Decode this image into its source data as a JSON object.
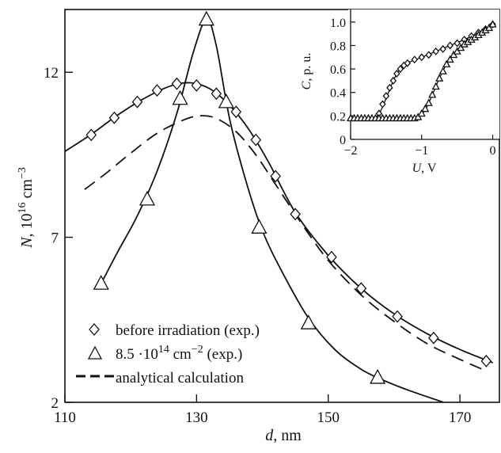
{
  "chart_data": [
    {
      "type": "line",
      "xlabel": {
        "var": "d",
        "unit": ", nm"
      },
      "ylabel": {
        "var": "N",
        "unit_prefix": ", 10",
        "unit_sup": "16",
        "unit_mid": " cm",
        "unit_sup2": "−3"
      },
      "xlim": [
        110,
        176
      ],
      "ylim": [
        2,
        13.9
      ],
      "xticks": [
        110,
        130,
        150,
        170
      ],
      "yticks": [
        2,
        7,
        12
      ],
      "grid": false,
      "legend_position": "bottom-left",
      "series": [
        {
          "name": "before irradiation (exp.)",
          "marker": "diamond",
          "points": [
            [
              114,
              10.1
            ],
            [
              117.5,
              10.62
            ],
            [
              121,
              11.1
            ],
            [
              124,
              11.45
            ],
            [
              127,
              11.65
            ],
            [
              130,
              11.6
            ],
            [
              133,
              11.35
            ],
            [
              136,
              10.8
            ],
            [
              139,
              9.95
            ],
            [
              142,
              8.85
            ],
            [
              145,
              7.7
            ],
            [
              150.5,
              6.4
            ],
            [
              155,
              5.45
            ],
            [
              160.5,
              4.6
            ],
            [
              166,
              3.95
            ],
            [
              174,
              3.25
            ]
          ],
          "curve": [
            [
              110,
              9.6
            ],
            [
              114,
              10.12
            ],
            [
              118,
              10.7
            ],
            [
              122,
              11.2
            ],
            [
              126,
              11.58
            ],
            [
              129,
              11.68
            ],
            [
              132,
              11.5
            ],
            [
              135,
              11.0
            ],
            [
              138,
              10.25
            ],
            [
              141,
              9.25
            ],
            [
              145,
              7.75
            ],
            [
              150,
              6.45
            ],
            [
              155,
              5.45
            ],
            [
              160,
              4.68
            ],
            [
              165,
              4.08
            ],
            [
              170,
              3.6
            ],
            [
              175,
              3.2
            ]
          ]
        },
        {
          "name": "8.5·10¹⁴ cm⁻² (exp.)",
          "legend_parts": {
            "base": "8.5 ·10",
            "sup": "14",
            "mid": " cm",
            "sup2": "−2",
            "tail": " (exp.)"
          },
          "marker": "triangle",
          "points": [
            [
              115.5,
              5.6
            ],
            [
              122.5,
              8.15
            ],
            [
              127.5,
              11.2
            ],
            [
              131.5,
              13.6
            ],
            [
              134.5,
              11.1
            ],
            [
              139.5,
              7.3
            ],
            [
              147,
              4.4
            ],
            [
              157.5,
              2.75
            ]
          ],
          "curve": [
            [
              115.5,
              5.6
            ],
            [
              118,
              6.55
            ],
            [
              121,
              7.65
            ],
            [
              124,
              9.0
            ],
            [
              127,
              10.75
            ],
            [
              129.5,
              12.6
            ],
            [
              131.5,
              13.6
            ],
            [
              133,
              12.8
            ],
            [
              135,
              10.6
            ],
            [
              137.5,
              8.7
            ],
            [
              140,
              7.2
            ],
            [
              143,
              5.95
            ],
            [
              147,
              4.55
            ],
            [
              151,
              3.6
            ],
            [
              155,
              3.0
            ],
            [
              158,
              2.7
            ],
            [
              162,
              2.38
            ],
            [
              167.5,
              2.0
            ]
          ]
        },
        {
          "name": "analytical calculation",
          "style": "dashed",
          "curve": [
            [
              113,
              8.45
            ],
            [
              116,
              8.9
            ],
            [
              120,
              9.55
            ],
            [
              124,
              10.15
            ],
            [
              128,
              10.55
            ],
            [
              130.5,
              10.68
            ],
            [
              133,
              10.6
            ],
            [
              136,
              10.2
            ],
            [
              139,
              9.5
            ],
            [
              142,
              8.6
            ],
            [
              146,
              7.4
            ],
            [
              150,
              6.3
            ],
            [
              155,
              5.25
            ],
            [
              160,
              4.45
            ],
            [
              165,
              3.78
            ],
            [
              170,
              3.3
            ],
            [
              174,
              2.95
            ]
          ]
        }
      ]
    },
    {
      "type": "line",
      "inset": true,
      "xlabel": {
        "var": "U",
        "unit": ", V"
      },
      "ylabel": {
        "var": "C",
        "unit": ", p. u."
      },
      "xlim": [
        -2,
        0.05
      ],
      "ylim": [
        0,
        1.08
      ],
      "xticks": [
        -2,
        -1,
        0
      ],
      "xtick_labels": [
        "−2",
        "−1",
        "0"
      ],
      "yticks": [
        0,
        0.2,
        0.4,
        0.6,
        0.8,
        1.0
      ],
      "ytick_labels": [
        "0",
        "0.2",
        "0.4",
        "0.6",
        "0.8",
        "1.0"
      ],
      "grid": false,
      "series": [
        {
          "marker": "diamond",
          "curve": [
            [
              -2,
              0.18
            ],
            [
              -1.7,
              0.18
            ],
            [
              -1.6,
              0.22
            ],
            [
              -1.5,
              0.35
            ],
            [
              -1.4,
              0.5
            ],
            [
              -1.3,
              0.6
            ],
            [
              -1.2,
              0.65
            ],
            [
              -1.0,
              0.7
            ],
            [
              -0.8,
              0.75
            ],
            [
              -0.6,
              0.8
            ],
            [
              -0.4,
              0.85
            ],
            [
              -0.2,
              0.91
            ],
            [
              0,
              0.98
            ]
          ],
          "points": [
            [
              -1.6,
              0.22
            ],
            [
              -1.55,
              0.3
            ],
            [
              -1.5,
              0.37
            ],
            [
              -1.45,
              0.44
            ],
            [
              -1.4,
              0.5
            ],
            [
              -1.35,
              0.56
            ],
            [
              -1.3,
              0.6
            ],
            [
              -1.25,
              0.63
            ],
            [
              -1.2,
              0.65
            ],
            [
              -1.1,
              0.68
            ],
            [
              -1.0,
              0.7
            ],
            [
              -0.9,
              0.72
            ],
            [
              -0.8,
              0.75
            ],
            [
              -0.7,
              0.77
            ],
            [
              -0.6,
              0.8
            ],
            [
              -0.5,
              0.82
            ],
            [
              -0.4,
              0.85
            ],
            [
              -0.3,
              0.88
            ],
            [
              -0.2,
              0.91
            ],
            [
              -0.1,
              0.94
            ],
            [
              0,
              0.98
            ]
          ]
        },
        {
          "marker": "triangle",
          "curve": [
            [
              -2,
              0.18
            ],
            [
              -1.2,
              0.18
            ],
            [
              -1.05,
              0.19
            ],
            [
              -0.95,
              0.25
            ],
            [
              -0.85,
              0.38
            ],
            [
              -0.75,
              0.52
            ],
            [
              -0.65,
              0.64
            ],
            [
              -0.55,
              0.72
            ],
            [
              -0.4,
              0.81
            ],
            [
              -0.2,
              0.89
            ],
            [
              0,
              0.98
            ]
          ],
          "points": [
            [
              -2,
              0.18
            ],
            [
              -1.95,
              0.18
            ],
            [
              -1.9,
              0.18
            ],
            [
              -1.85,
              0.18
            ],
            [
              -1.8,
              0.18
            ],
            [
              -1.75,
              0.18
            ],
            [
              -1.7,
              0.18
            ],
            [
              -1.65,
              0.18
            ],
            [
              -1.6,
              0.18
            ],
            [
              -1.55,
              0.18
            ],
            [
              -1.5,
              0.18
            ],
            [
              -1.45,
              0.18
            ],
            [
              -1.4,
              0.18
            ],
            [
              -1.35,
              0.18
            ],
            [
              -1.3,
              0.18
            ],
            [
              -1.25,
              0.18
            ],
            [
              -1.2,
              0.18
            ],
            [
              -1.15,
              0.18
            ],
            [
              -1.1,
              0.18
            ],
            [
              -1.05,
              0.19
            ],
            [
              -1.0,
              0.22
            ],
            [
              -0.95,
              0.26
            ],
            [
              -0.9,
              0.31
            ],
            [
              -0.85,
              0.38
            ],
            [
              -0.8,
              0.45
            ],
            [
              -0.75,
              0.52
            ],
            [
              -0.7,
              0.58
            ],
            [
              -0.65,
              0.64
            ],
            [
              -0.6,
              0.68
            ],
            [
              -0.55,
              0.72
            ],
            [
              -0.5,
              0.75
            ],
            [
              -0.45,
              0.78
            ],
            [
              -0.4,
              0.81
            ],
            [
              -0.35,
              0.83
            ],
            [
              -0.3,
              0.85
            ],
            [
              -0.25,
              0.87
            ],
            [
              -0.2,
              0.89
            ],
            [
              -0.15,
              0.91
            ],
            [
              -0.1,
              0.93
            ],
            [
              -0.05,
              0.95
            ],
            [
              0,
              0.98
            ]
          ]
        }
      ]
    }
  ]
}
